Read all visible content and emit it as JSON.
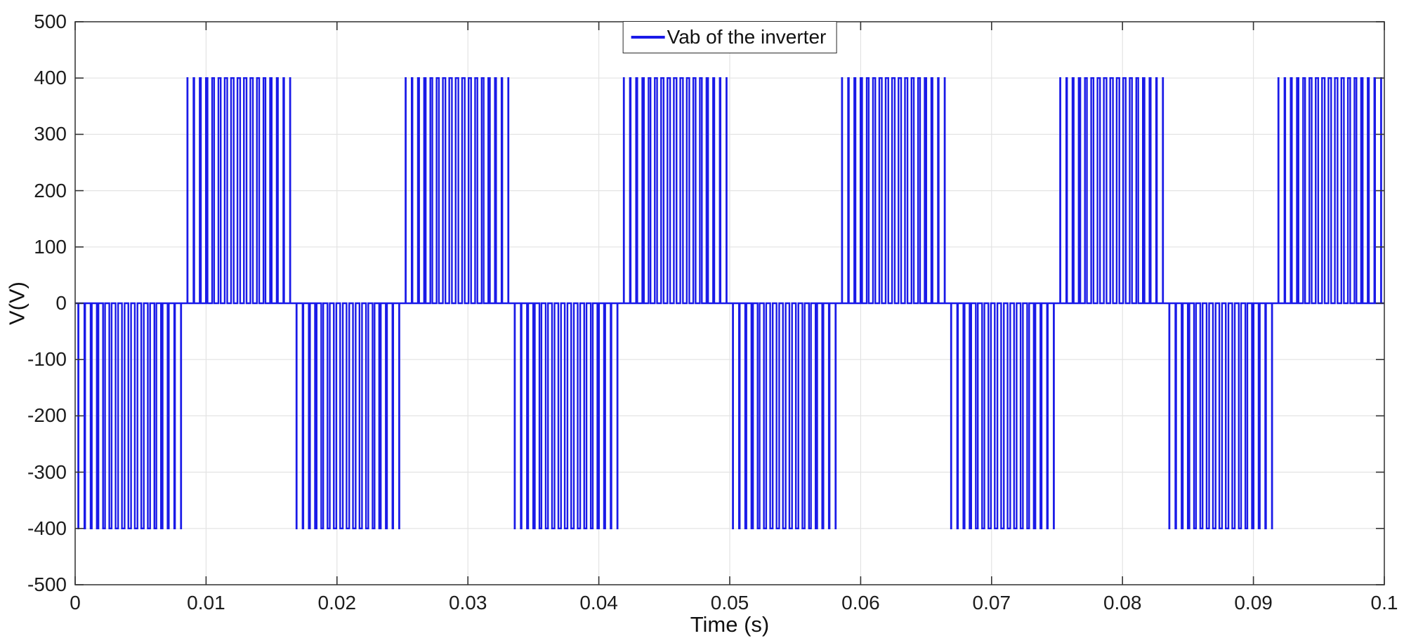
{
  "figure": {
    "background_color": "#ffffff",
    "axis_color": "#3b3b3b",
    "tick_color": "#333333",
    "grid_color": "#e3e3e3",
    "text_color": "#1c1c1c"
  },
  "chart_data": {
    "type": "line",
    "title": "",
    "xlabel": "Time (s)",
    "ylabel": "V(V)",
    "legend": [
      "Vab of the inverter"
    ],
    "legend_position": "north",
    "grid": true,
    "xlim": [
      0,
      0.1
    ],
    "ylim": [
      -500,
      500
    ],
    "x_ticks": [
      0,
      0.01,
      0.02,
      0.03,
      0.04,
      0.05,
      0.06,
      0.07,
      0.08,
      0.09,
      0.1
    ],
    "x_tick_labels": [
      "0",
      "0.01",
      "0.02",
      "0.03",
      "0.04",
      "0.05",
      "0.06",
      "0.07",
      "0.08",
      "0.09",
      "0.1"
    ],
    "y_ticks": [
      -500,
      -400,
      -300,
      -200,
      -100,
      0,
      100,
      200,
      300,
      400,
      500
    ],
    "y_tick_labels": [
      "-500",
      "-400",
      "-300",
      "-200",
      "-100",
      "0",
      "100",
      "200",
      "300",
      "400",
      "500"
    ],
    "series": [
      {
        "name": "Vab of the inverter",
        "color": "#1a1ae8",
        "waveform": "unipolar_spwm_pulse_train",
        "description": "PWM line-to-line inverter voltage: pulse groups alternating 0 to -400 V and 0 to +400 V each half cycle, sinusoidally modulated pulse widths",
        "fundamental_hz": 60,
        "amplitude_v": 400,
        "carrier_hz": 2040,
        "pulses_per_half_cycle": 17,
        "duty_peak": 0.42,
        "first_half_cycle_polarity": "negative",
        "duration_s": 0.1
      }
    ]
  }
}
